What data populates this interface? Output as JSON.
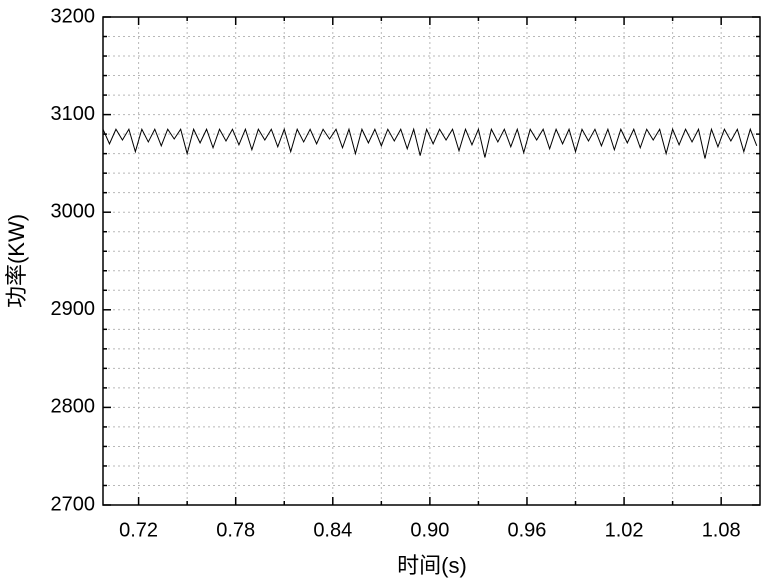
{
  "chart_data": {
    "type": "line",
    "x_label": "时间(s)",
    "y_label": "功率(KW)",
    "x": [
      0.698,
      0.702,
      0.706,
      0.71,
      0.714,
      0.718,
      0.722,
      0.726,
      0.73,
      0.734,
      0.738,
      0.742,
      0.746,
      0.75,
      0.754,
      0.758,
      0.762,
      0.766,
      0.77,
      0.774,
      0.778,
      0.782,
      0.786,
      0.79,
      0.794,
      0.798,
      0.802,
      0.806,
      0.81,
      0.814,
      0.818,
      0.822,
      0.826,
      0.83,
      0.834,
      0.838,
      0.842,
      0.846,
      0.85,
      0.854,
      0.858,
      0.862,
      0.866,
      0.87,
      0.874,
      0.878,
      0.882,
      0.886,
      0.89,
      0.894,
      0.898,
      0.902,
      0.906,
      0.91,
      0.914,
      0.918,
      0.922,
      0.926,
      0.93,
      0.934,
      0.938,
      0.942,
      0.946,
      0.95,
      0.954,
      0.958,
      0.962,
      0.966,
      0.97,
      0.974,
      0.978,
      0.982,
      0.986,
      0.99,
      0.994,
      0.998,
      1.002,
      1.006,
      1.01,
      1.014,
      1.018,
      1.022,
      1.026,
      1.03,
      1.034,
      1.038,
      1.042,
      1.046,
      1.05,
      1.054,
      1.058,
      1.062,
      1.066,
      1.07,
      1.074,
      1.078,
      1.082,
      1.086,
      1.09,
      1.094,
      1.098,
      1.102
    ],
    "series": [
      {
        "color": "#000000",
        "values": [
          3085,
          3070,
          3085,
          3074,
          3085,
          3062,
          3085,
          3072,
          3085,
          3068,
          3085,
          3075,
          3085,
          3060,
          3085,
          3071,
          3085,
          3066,
          3085,
          3073,
          3085,
          3069,
          3085,
          3064,
          3085,
          3074,
          3085,
          3067,
          3085,
          3062,
          3085,
          3072,
          3085,
          3070,
          3085,
          3075,
          3085,
          3066,
          3085,
          3060,
          3085,
          3071,
          3085,
          3068,
          3085,
          3073,
          3085,
          3065,
          3085,
          3058,
          3085,
          3070,
          3085,
          3074,
          3085,
          3063,
          3085,
          3069,
          3085,
          3056,
          3085,
          3072,
          3085,
          3067,
          3085,
          3061,
          3085,
          3074,
          3085,
          3065,
          3085,
          3070,
          3085,
          3062,
          3085,
          3073,
          3085,
          3068,
          3085,
          3064,
          3085,
          3071,
          3085,
          3066,
          3085,
          3074,
          3085,
          3060,
          3085,
          3069,
          3085,
          3072,
          3085,
          3055,
          3085,
          3067,
          3085,
          3073,
          3085,
          3062,
          3085,
          3068
        ]
      }
    ],
    "xlim": [
      0.698,
      1.104
    ],
    "xticks": [
      0.72,
      0.78,
      0.84,
      {
        "value": 0.9,
        "label": "0.90"
      },
      0.96,
      1.02,
      1.08
    ],
    "xminorticks": [
      0.75,
      0.81,
      0.87,
      0.93,
      0.99,
      1.05
    ],
    "ylim": [
      2700,
      3200
    ],
    "yticks": [
      2700,
      2800,
      2900,
      3000,
      3100,
      3200
    ],
    "yminorticks": [
      2720,
      2740,
      2760,
      2780,
      2820,
      2840,
      2860,
      2880,
      2920,
      2940,
      2960,
      2980,
      3020,
      3040,
      3060,
      3080,
      3120,
      3140,
      3160,
      3180
    ],
    "grid": true
  }
}
